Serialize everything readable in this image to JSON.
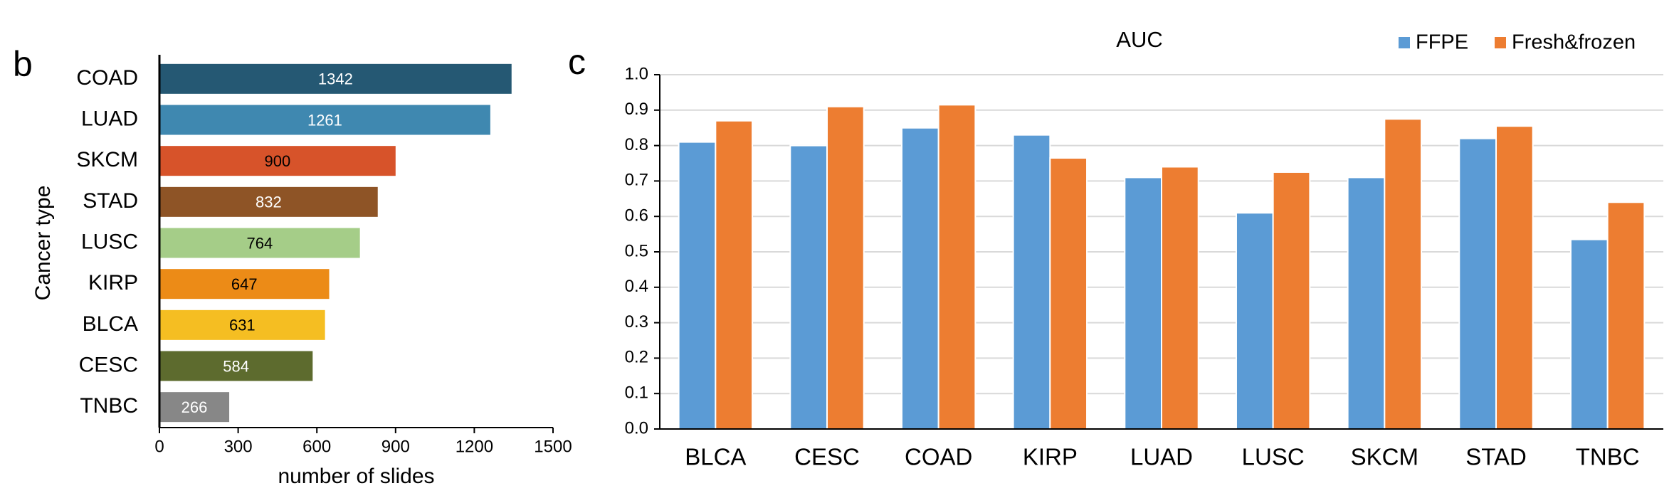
{
  "chart_data": [
    {
      "type": "barh",
      "panel": "b",
      "categories": [
        "COAD",
        "LUAD",
        "SKCM",
        "STAD",
        "LUSC",
        "KIRP",
        "BLCA",
        "CESC",
        "TNBC"
      ],
      "values": [
        1342,
        1261,
        900,
        832,
        764,
        647,
        631,
        584,
        266
      ],
      "colors": [
        "#255873",
        "#3f88b0",
        "#d7532a",
        "#8e5426",
        "#a5cd88",
        "#ec8b17",
        "#f5be22",
        "#5d6b2e",
        "#878787"
      ],
      "value_label_colors": [
        "#ffffff",
        "#ffffff",
        "#000000",
        "#ffffff",
        "#000000",
        "#000000",
        "#000000",
        "#ffffff",
        "#ffffff"
      ],
      "xlabel": "number of slides",
      "ylabel": "Cancer type",
      "xlim": [
        0,
        1500
      ],
      "xticks": [
        0,
        300,
        600,
        900,
        1200,
        1500
      ]
    },
    {
      "type": "bar",
      "panel": "c",
      "title": "AUC",
      "categories": [
        "BLCA",
        "CESC",
        "COAD",
        "KIRP",
        "LUAD",
        "LUSC",
        "SKCM",
        "STAD",
        "TNBC"
      ],
      "series": [
        {
          "name": "FFPE",
          "color": "#5b9bd5",
          "values": [
            0.81,
            0.8,
            0.85,
            0.83,
            0.71,
            0.61,
            0.71,
            0.82,
            0.535
          ]
        },
        {
          "name": "Fresh&frozen",
          "color": "#ed7d31",
          "values": [
            0.87,
            0.91,
            0.915,
            0.765,
            0.74,
            0.725,
            0.875,
            0.855,
            0.64
          ]
        }
      ],
      "ylim": [
        0,
        1
      ],
      "yticks": [
        {
          "value": 0,
          "label": "0.0"
        },
        0.1,
        0.2,
        0.3,
        0.4,
        0.5,
        0.6,
        0.7,
        0.8,
        0.9,
        {
          "value": 1,
          "label": "1.0"
        }
      ],
      "grid": true,
      "legend": "top-right"
    }
  ]
}
